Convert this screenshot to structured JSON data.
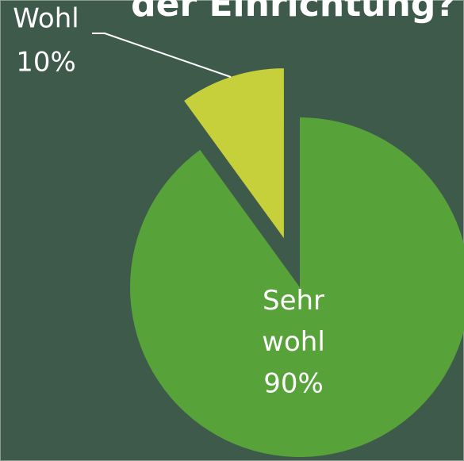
{
  "chart_data": {
    "type": "pie",
    "title": "der Einrichtung?",
    "categories": [
      "Sehr wohl",
      "Wohl"
    ],
    "values": [
      90,
      10
    ],
    "value_labels": [
      "90%",
      "10%"
    ],
    "colors": [
      "#58a23a",
      "#c6d03a"
    ]
  }
}
